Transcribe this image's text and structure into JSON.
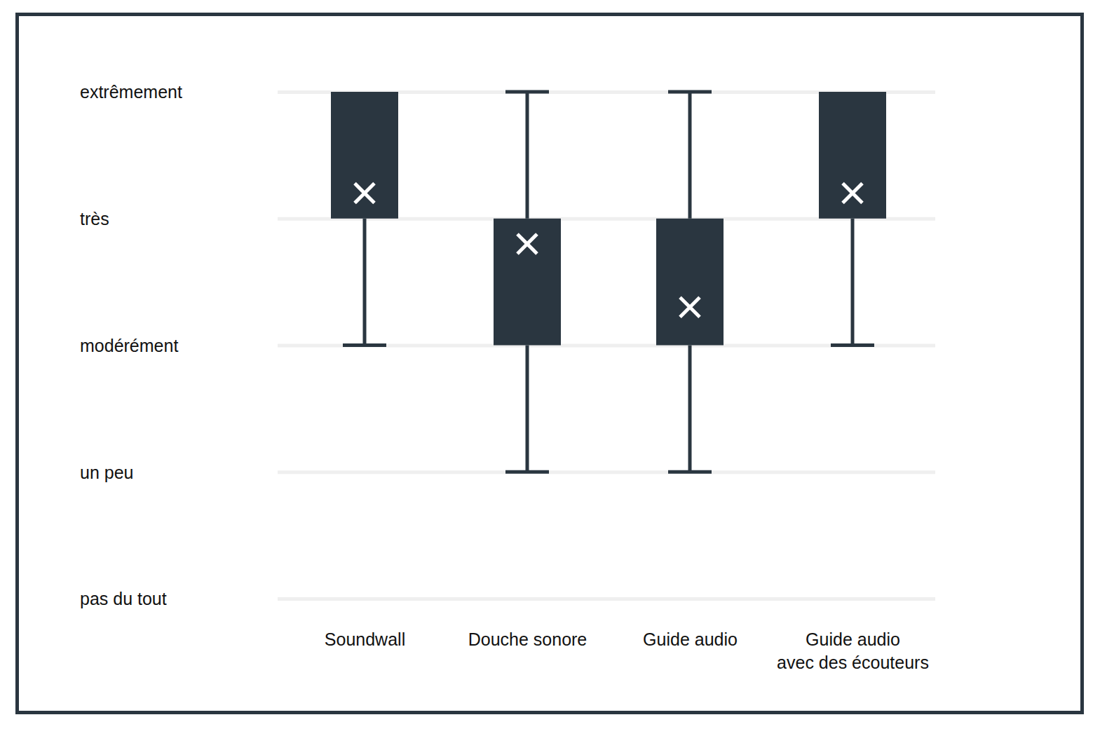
{
  "chart_data": {
    "type": "box",
    "categories": [
      "Soundwall",
      "Douche sonore",
      "Guide audio",
      "Guide audio\navec des écouteurs"
    ],
    "min": [
      2,
      1,
      1,
      2
    ],
    "q1": [
      3,
      2,
      2,
      3
    ],
    "q3": [
      4,
      3,
      3,
      4
    ],
    "max": [
      4,
      4,
      4,
      4
    ],
    "mean": [
      3.2,
      2.8,
      2.3,
      3.2
    ],
    "ylim": [
      0,
      4
    ],
    "yticks": [
      {
        "value": 0,
        "label": "pas du tout"
      },
      {
        "value": 1,
        "label": "un peu"
      },
      {
        "value": 2,
        "label": "modérément"
      },
      {
        "value": 3,
        "label": "très"
      },
      {
        "value": 4,
        "label": "extrêmement"
      }
    ],
    "grid": true,
    "color": "#2a3640",
    "marker": "x"
  }
}
